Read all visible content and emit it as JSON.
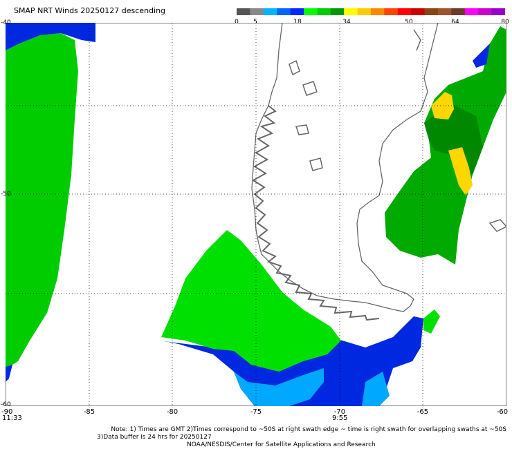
{
  "title": "SMAP NRT Winds  20250127 descending",
  "colorbar": {
    "ticks": [
      "0",
      "5",
      "18",
      "34",
      "50",
      "64",
      "80"
    ],
    "segments": [
      "#555555",
      "#888888",
      "#00b4ff",
      "#0064ff",
      "#0028ff",
      "#00ff00",
      "#00cc00",
      "#009900",
      "#ffff00",
      "#ffcc00",
      "#ff8800",
      "#ff4400",
      "#ff0000",
      "#cc0000",
      "#8b4513",
      "#a0522d",
      "#6b3a2a",
      "#ff00ff",
      "#cc00cc",
      "#9900cc"
    ]
  },
  "map": {
    "x_ticks": [
      "-90",
      "-85",
      "-80",
      "-75",
      "-70",
      "-65",
      "-60"
    ],
    "y_ticks": [
      "-40",
      "",
      "-50",
      "",
      "-60"
    ],
    "top_label": "-40",
    "bottom_label": "-60",
    "mid_label": "-50",
    "time_left": "11:33",
    "time_mid": "9:55"
  },
  "colors": {
    "green": "#00cc00",
    "bright_green": "#00e000",
    "dark_green": "#008800",
    "blue": "#0028e0",
    "light_blue": "#00a8ff",
    "yellow": "#ffd700",
    "coast": "#666666"
  },
  "note": {
    "line1": "Note: 1) Times are GMT 2)Times correspond to ~50S at right swath edge ~ time is right swath for overlapping swaths at ~50S",
    "line2": "3)Data buffer is 24 hrs for 20250127",
    "line3": "NOAA/NESDIS/Center for Satellite Applications and Research"
  }
}
